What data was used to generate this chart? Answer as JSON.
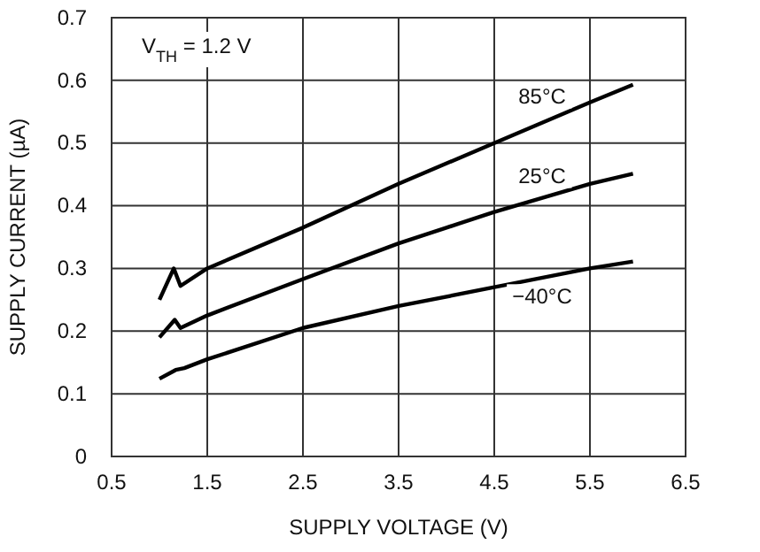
{
  "chart_data": {
    "type": "line",
    "xlabel": "SUPPLY VOLTAGE (V)",
    "ylabel": "SUPPLY CURRENT (µA)",
    "annotations": [
      "V$_{TH}$ = 1.2 V"
    ],
    "xlim": [
      0.5,
      6.5
    ],
    "xticks": [
      0.5,
      1.5,
      2.5,
      3.5,
      4.5,
      5.5,
      6.5
    ],
    "ylim": [
      0,
      0.7
    ],
    "yticks": [
      0,
      0.1,
      0.2,
      0.3,
      0.4,
      0.5,
      0.6,
      0.7
    ],
    "grid": true,
    "line_style": "solid",
    "marker": "none",
    "series": [
      {
        "name": "85°C",
        "color": "#000000",
        "x": [
          1.0,
          1.15,
          1.22,
          1.5,
          2.5,
          3.5,
          4.5,
          5.5,
          5.95
        ],
        "values": [
          0.25,
          0.3,
          0.272,
          0.3,
          0.365,
          0.435,
          0.5,
          0.565,
          0.593
        ]
      },
      {
        "name": "25°C",
        "color": "#000000",
        "x": [
          1.0,
          1.16,
          1.22,
          1.5,
          2.5,
          3.5,
          4.5,
          5.5,
          5.95
        ],
        "values": [
          0.19,
          0.218,
          0.205,
          0.225,
          0.283,
          0.34,
          0.39,
          0.435,
          0.451
        ]
      },
      {
        "name": "−40°C",
        "color": "#000000",
        "x": [
          1.0,
          1.17,
          1.26,
          1.5,
          2.5,
          3.5,
          4.5,
          5.5,
          5.95
        ],
        "values": [
          0.124,
          0.138,
          0.141,
          0.155,
          0.205,
          0.24,
          0.27,
          0.3,
          0.311
        ]
      }
    ]
  }
}
